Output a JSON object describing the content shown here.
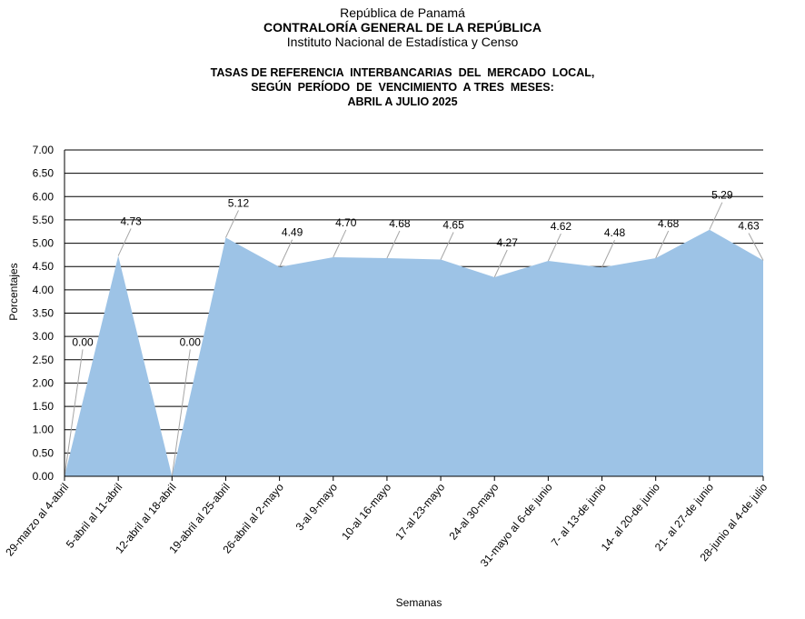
{
  "header": {
    "line1": "República de Panamá",
    "line2": "CONTRALORÍA GENERAL DE LA REPÚBLICA",
    "line3": "Instituto Nacional de Estadística y Censo"
  },
  "chart_data": {
    "type": "area",
    "title_lines": [
      "TASAS DE REFERENCIA  INTERBANCARIAS  DEL  MERCADO  LOCAL,",
      "SEGÚN  PERÍODO  DE  VENCIMIENTO  A TRES  MESES:",
      "ABRIL A JULIO 2025"
    ],
    "xlabel": "Semanas",
    "ylabel": "Porcentajes",
    "ylim": [
      0,
      7
    ],
    "ytick_step": 0.5,
    "ytick_labels": [
      "0.00",
      "0.50",
      "1.00",
      "1.50",
      "2.00",
      "2.50",
      "3.00",
      "3.50",
      "4.00",
      "4.50",
      "5.00",
      "5.50",
      "6.00",
      "6.50",
      "7.00"
    ],
    "categories": [
      "29-marzo al 4-abril",
      "5-abril al 11-abril",
      "12-abril al 18-abril",
      "19-abril al 25-abril",
      "26-abril al 2-mayo",
      "3-al 9-mayo",
      "10-al 16-mayo",
      "17-al 23-mayo",
      "24-al 30-mayo",
      "31-mayo al 6-de junio",
      "7- al 13-de junio",
      "14- al 20-de junio",
      "21- al 27-de junio",
      "28-junio al 4-de julio"
    ],
    "values": [
      0.0,
      4.73,
      0.0,
      5.12,
      4.49,
      4.7,
      4.68,
      4.65,
      4.27,
      4.62,
      4.48,
      4.68,
      5.29,
      4.63
    ],
    "data_labels": [
      "0.00",
      "4.73",
      "0.00",
      "5.12",
      "4.49",
      "4.70",
      "4.68",
      "4.65",
      "4.27",
      "4.62",
      "4.48",
      "4.68",
      "5.29",
      "4.63"
    ],
    "grid": true,
    "fill_color": "#9DC3E6",
    "grid_color": "#000000"
  }
}
